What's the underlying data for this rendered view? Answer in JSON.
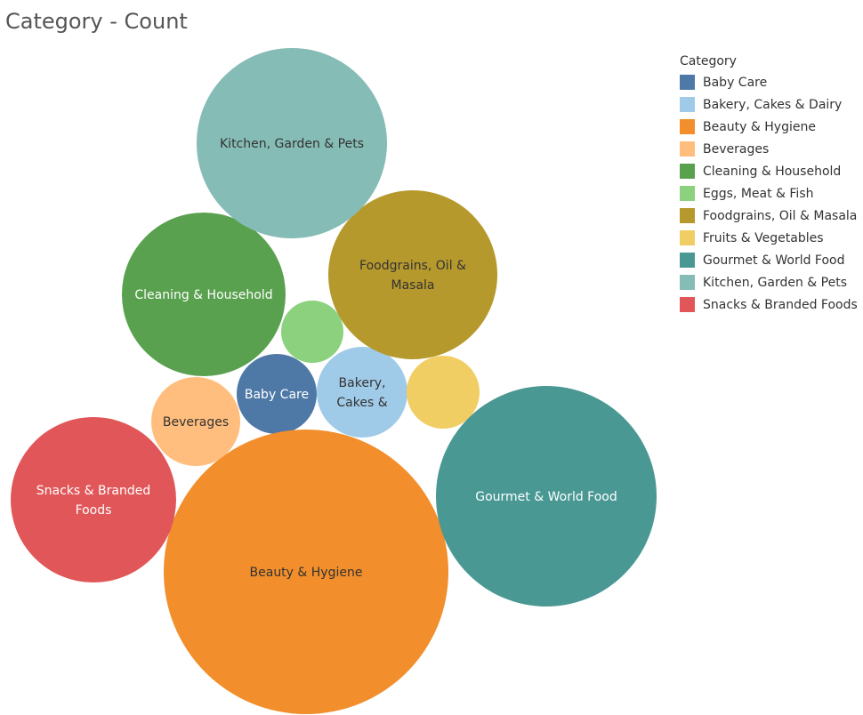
{
  "title": "Category - Count",
  "chart_data": {
    "type": "bubble",
    "title": "Category - Count",
    "legend": {
      "title": "Category",
      "placement": "right"
    },
    "series": [
      {
        "name": "Baby Care",
        "color": "#4e79a7",
        "bubble_label": [
          "Baby Care"
        ],
        "label_color": "#ffffff"
      },
      {
        "name": "Bakery, Cakes & Dairy",
        "color": "#a0cbe8",
        "bubble_label": [
          "Bakery,",
          "Cakes &"
        ],
        "label_color": "#333333"
      },
      {
        "name": "Beauty & Hygiene",
        "color": "#f28e2b",
        "bubble_label": [
          "Beauty & Hygiene"
        ],
        "label_color": "#333333"
      },
      {
        "name": "Beverages",
        "color": "#ffbe7d",
        "bubble_label": [
          "Beverages"
        ],
        "label_color": "#333333"
      },
      {
        "name": "Cleaning & Household",
        "color": "#59a14f",
        "bubble_label": [
          "Cleaning & Household"
        ],
        "label_color": "#ffffff"
      },
      {
        "name": "Eggs, Meat & Fish",
        "color": "#8cd17d",
        "bubble_label": [],
        "label_color": "#333333"
      },
      {
        "name": "Foodgrains, Oil & Masala",
        "color": "#b6992d",
        "bubble_label": [
          "Foodgrains, Oil &",
          "Masala"
        ],
        "label_color": "#333333"
      },
      {
        "name": "Fruits & Vegetables",
        "color": "#f1ce63",
        "bubble_label": [],
        "label_color": "#333333"
      },
      {
        "name": "Gourmet & World Food",
        "color": "#499894",
        "bubble_label": [
          "Gourmet & World Food"
        ],
        "label_color": "#ffffff"
      },
      {
        "name": "Kitchen, Garden & Pets",
        "color": "#86bcb6",
        "bubble_label": [
          "Kitchen, Garden & Pets"
        ],
        "label_color": "#333333"
      },
      {
        "name": "Snacks & Branded Foods",
        "color": "#e15759",
        "bubble_label": [
          "Snacks & Branded",
          "Foods"
        ],
        "label_color": "#ffffff"
      }
    ]
  }
}
